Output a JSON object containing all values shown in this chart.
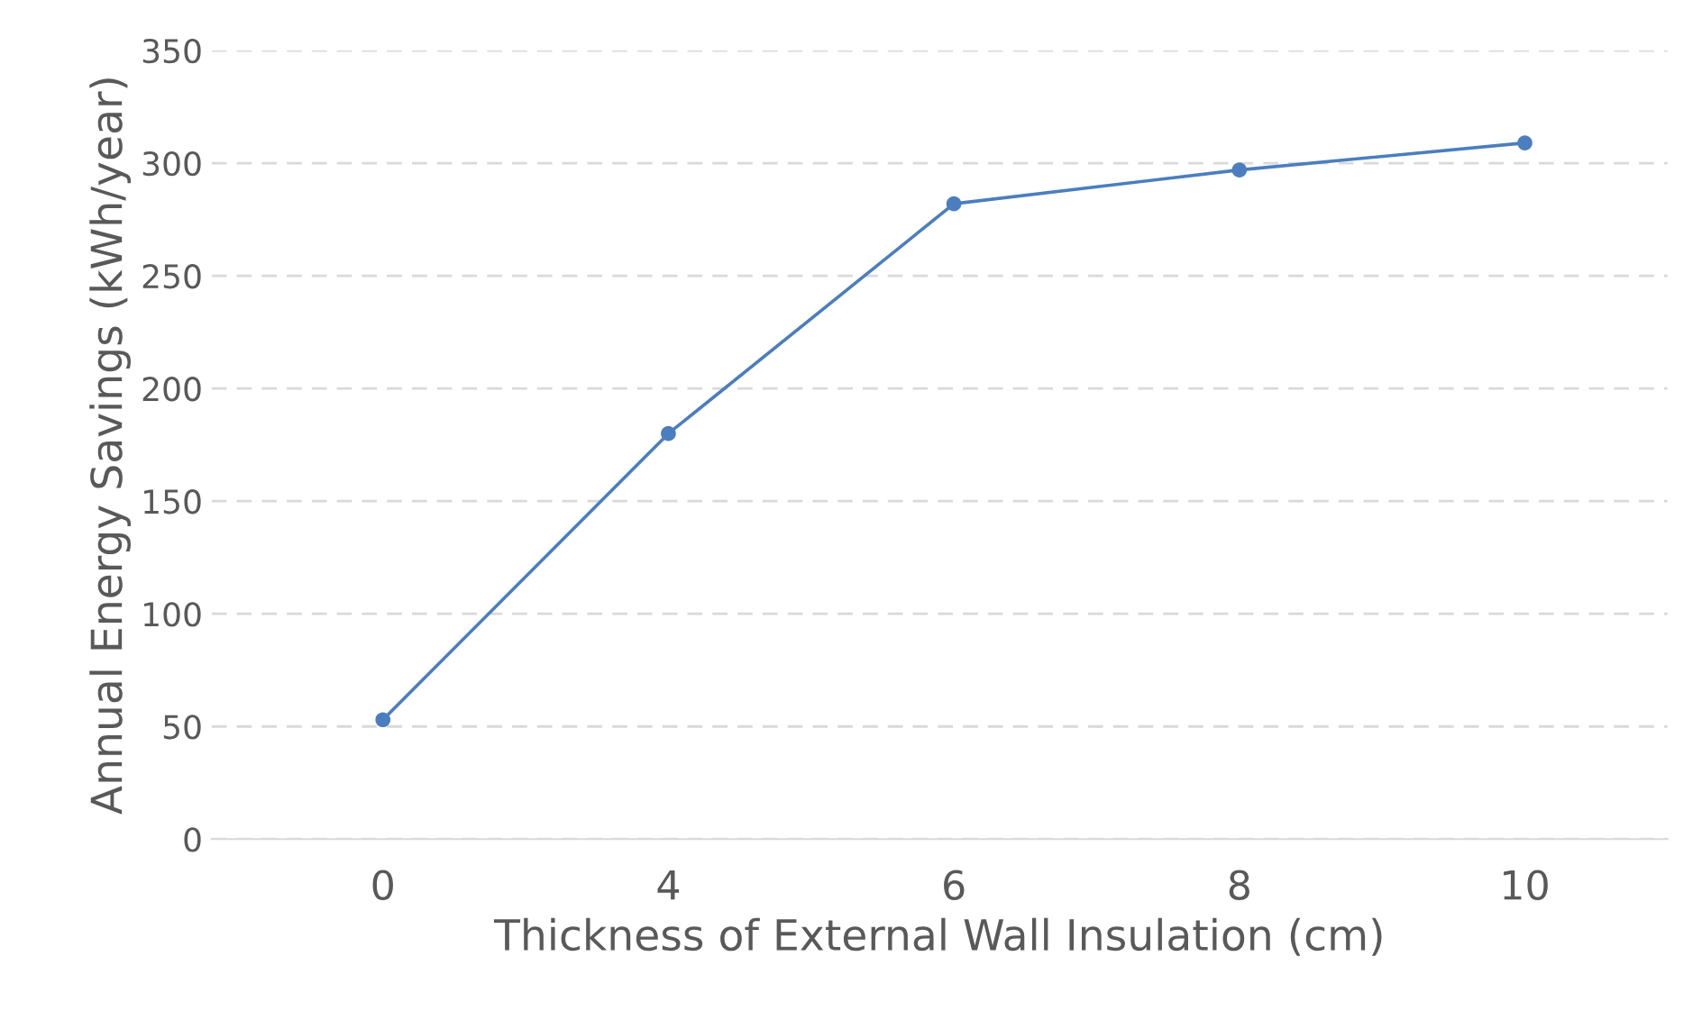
{
  "chart_data": {
    "type": "line",
    "xlabel": "Thickness of External Wall Insulation (cm)",
    "ylabel": "Annual Energy Savings (kWh/year)",
    "categories": [
      "0",
      "4",
      "6",
      "8",
      "10"
    ],
    "series": [
      {
        "color": "#4a7ebf",
        "values": [
          53,
          180,
          282,
          297,
          309
        ]
      }
    ],
    "ylim": [
      0,
      350
    ],
    "yticks": [
      0,
      50,
      100,
      150,
      200,
      250,
      300,
      350
    ],
    "grid": "y",
    "marker": "circle",
    "line_style": "solid"
  }
}
